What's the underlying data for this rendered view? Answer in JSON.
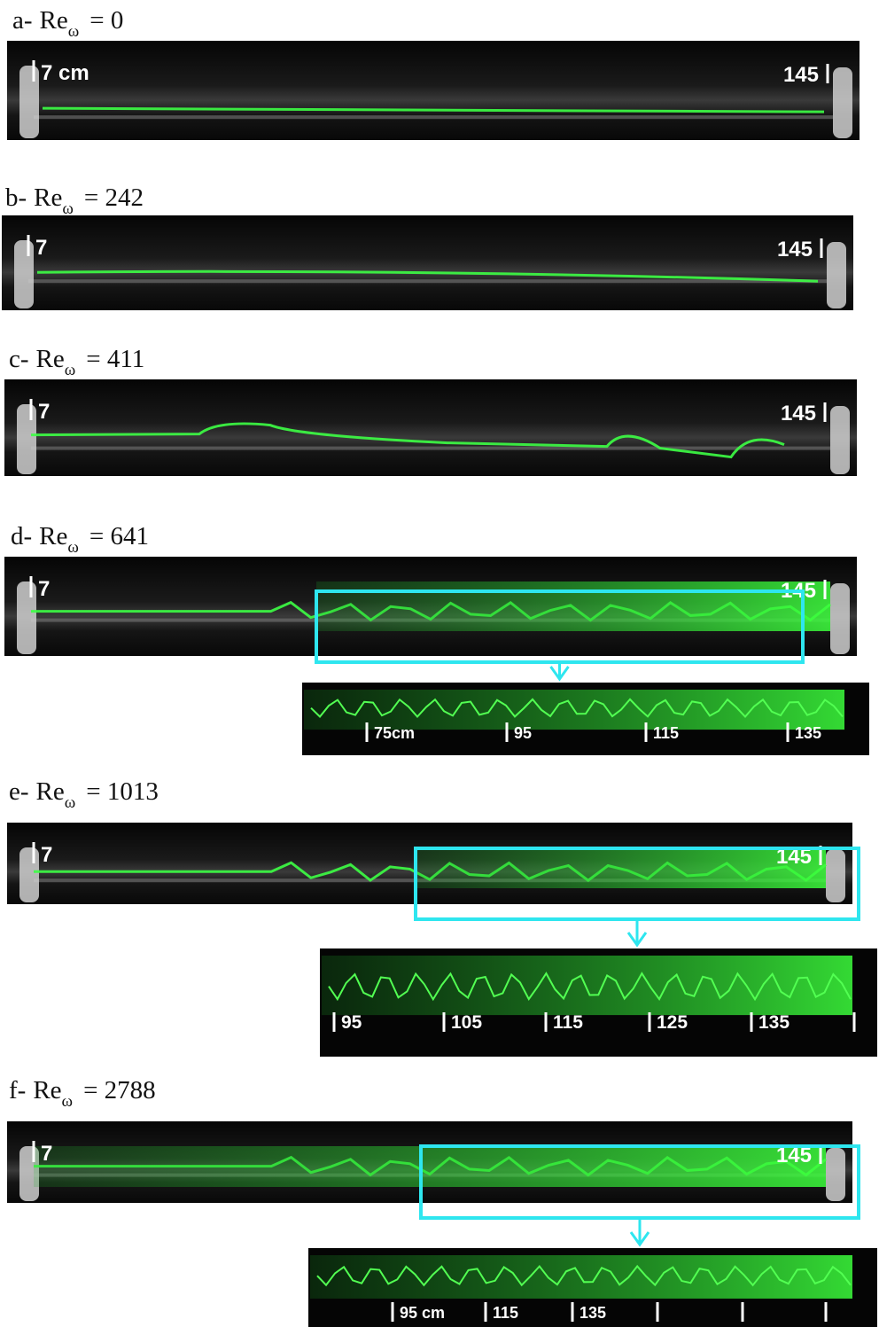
{
  "panels": [
    {
      "label": {
        "letter": "a-",
        "re": "Re",
        "sub": "ω",
        "value": "= 0"
      },
      "photo": {
        "left": "7 cm",
        "right": "145"
      }
    },
    {
      "label": {
        "letter": "b-",
        "re": "Re",
        "sub": "ω",
        "value": "= 242"
      },
      "photo": {
        "left": "7",
        "right": "145"
      }
    },
    {
      "label": {
        "letter": "c-",
        "re": "Re",
        "sub": "ω",
        "value": "= 411"
      },
      "photo": {
        "left": "7",
        "right": "145"
      }
    },
    {
      "label": {
        "letter": "d-",
        "re": "Re",
        "sub": "ω",
        "value": "= 641"
      },
      "photo": {
        "left": "7",
        "right": "145"
      },
      "zoom": {
        "ticks": [
          "75cm",
          "95",
          "115",
          "135"
        ]
      }
    },
    {
      "label": {
        "letter": "e-",
        "re": "Re",
        "sub": "ω",
        "value": "= 1013"
      },
      "photo": {
        "left": "7",
        "right": "145"
      },
      "zoom": {
        "ticks": [
          "95",
          "105",
          "115",
          "125",
          "135"
        ]
      }
    },
    {
      "label": {
        "letter": "f-",
        "re": "Re",
        "sub": "ω",
        "value": "= 2788"
      },
      "photo": {
        "left": "7",
        "right": "145"
      },
      "zoom": {
        "ticks": [
          "95 cm",
          "115",
          "135"
        ]
      }
    }
  ]
}
